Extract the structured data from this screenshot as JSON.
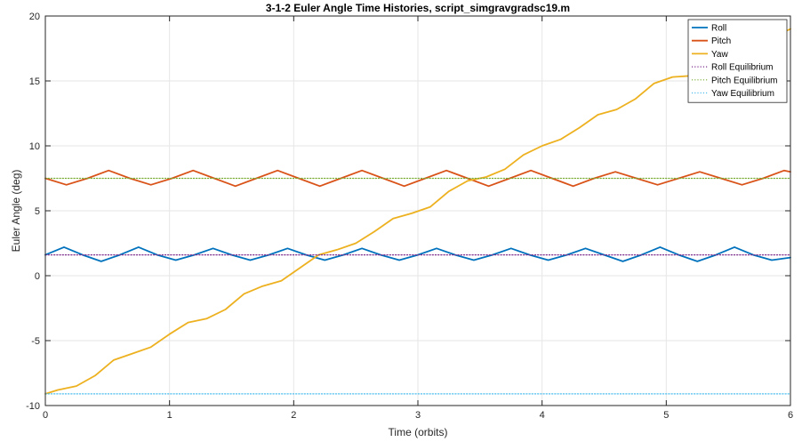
{
  "chart_data": {
    "type": "line",
    "title": "3-1-2 Euler Angle Time Histories, script_simgravgradsc19.m",
    "xlabel": "Time (orbits)",
    "ylabel": "Euler Angle (deg)",
    "xlim": [
      0,
      6
    ],
    "ylim": [
      -10,
      20
    ],
    "xticks": [
      0,
      1,
      2,
      3,
      4,
      5,
      6
    ],
    "xtick_labels": [
      "0",
      "1",
      "2",
      "3",
      "4",
      "5",
      "6"
    ],
    "yticks": [
      -10,
      -5,
      0,
      5,
      10,
      15,
      20
    ],
    "ytick_labels": [
      "-10",
      "-5",
      "0",
      "5",
      "10",
      "15",
      "20"
    ],
    "grid": true,
    "legend_position": "top-right",
    "series": [
      {
        "name": "Roll",
        "color": "#0072BD",
        "style": "solid",
        "x": [
          0,
          0.15,
          0.3,
          0.45,
          0.6,
          0.75,
          0.9,
          1.05,
          1.2,
          1.35,
          1.5,
          1.65,
          1.8,
          1.95,
          2.1,
          2.25,
          2.4,
          2.55,
          2.7,
          2.85,
          3.0,
          3.15,
          3.3,
          3.45,
          3.6,
          3.75,
          3.9,
          4.05,
          4.2,
          4.35,
          4.5,
          4.65,
          4.8,
          4.95,
          5.1,
          5.25,
          5.4,
          5.55,
          5.7,
          5.85,
          6.0
        ],
        "y": [
          1.6,
          2.2,
          1.6,
          1.1,
          1.6,
          2.2,
          1.6,
          1.2,
          1.6,
          2.1,
          1.6,
          1.2,
          1.6,
          2.1,
          1.6,
          1.2,
          1.6,
          2.1,
          1.6,
          1.2,
          1.6,
          2.1,
          1.6,
          1.2,
          1.6,
          2.1,
          1.6,
          1.2,
          1.6,
          2.1,
          1.6,
          1.1,
          1.6,
          2.2,
          1.6,
          1.1,
          1.6,
          2.2,
          1.6,
          1.2,
          1.4
        ]
      },
      {
        "name": "Pitch",
        "color": "#D95319",
        "style": "solid",
        "x": [
          0,
          0.17,
          0.34,
          0.51,
          0.68,
          0.85,
          1.02,
          1.19,
          1.36,
          1.53,
          1.7,
          1.87,
          2.04,
          2.21,
          2.38,
          2.55,
          2.72,
          2.89,
          3.06,
          3.23,
          3.4,
          3.57,
          3.74,
          3.91,
          4.08,
          4.25,
          4.42,
          4.59,
          4.76,
          4.93,
          5.1,
          5.27,
          5.44,
          5.61,
          5.78,
          5.95,
          6.0
        ],
        "y": [
          7.5,
          7.0,
          7.5,
          8.1,
          7.5,
          7.0,
          7.5,
          8.1,
          7.5,
          6.9,
          7.5,
          8.1,
          7.5,
          6.9,
          7.5,
          8.1,
          7.5,
          6.9,
          7.5,
          8.1,
          7.5,
          6.9,
          7.5,
          8.1,
          7.5,
          6.9,
          7.5,
          8.0,
          7.5,
          7.0,
          7.5,
          8.0,
          7.5,
          7.0,
          7.5,
          8.1,
          8.0
        ]
      },
      {
        "name": "Yaw",
        "color": "#EDB120",
        "style": "solid",
        "x": [
          0,
          0.1,
          0.25,
          0.4,
          0.55,
          0.7,
          0.85,
          1.0,
          1.15,
          1.3,
          1.45,
          1.6,
          1.75,
          1.9,
          2.05,
          2.2,
          2.35,
          2.5,
          2.65,
          2.8,
          2.95,
          3.1,
          3.25,
          3.4,
          3.55,
          3.7,
          3.85,
          4.0,
          4.15,
          4.3,
          4.45,
          4.6,
          4.75,
          4.9,
          5.05,
          5.2,
          5.35,
          5.5,
          5.65,
          5.8,
          6.0
        ],
        "y": [
          -9.1,
          -8.8,
          -8.5,
          -7.7,
          -6.5,
          -6.0,
          -5.5,
          -4.5,
          -3.6,
          -3.3,
          -2.6,
          -1.4,
          -0.8,
          -0.4,
          0.6,
          1.6,
          2.0,
          2.5,
          3.4,
          4.4,
          4.8,
          5.3,
          6.5,
          7.3,
          7.6,
          8.2,
          9.3,
          10.0,
          10.5,
          11.4,
          12.4,
          12.8,
          13.6,
          14.8,
          15.3,
          15.4,
          15.8,
          17.0,
          17.8,
          18.1,
          19.0
        ]
      },
      {
        "name": "Roll Equilibrium",
        "color": "#7E2F8E",
        "style": "dotted",
        "x": [
          0,
          6
        ],
        "y": [
          1.6,
          1.6
        ]
      },
      {
        "name": "Pitch Equilibrium",
        "color": "#77AC30",
        "style": "dotted",
        "x": [
          0,
          6
        ],
        "y": [
          7.5,
          7.5
        ]
      },
      {
        "name": "Yaw Equilibrium",
        "color": "#4DBEEE",
        "style": "dotted",
        "x": [
          0,
          6
        ],
        "y": [
          -9.1,
          -9.1
        ]
      }
    ]
  }
}
